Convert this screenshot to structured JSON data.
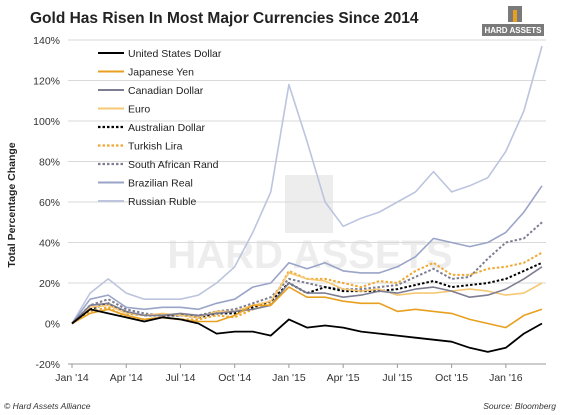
{
  "brand": {
    "logo_text": "HARD ASSETS",
    "watermark_text": "HARD ASSETS"
  },
  "colors": {
    "United States Dollar": "#000000",
    "Japanese Yen": "#e8a020",
    "Canadian Dollar": "#7d7d92",
    "Euro": "#f6c873",
    "Australian Dollar": "#000000",
    "Turkish Lira": "#f0a830",
    "South African Rand": "#7d7d92",
    "Brazilian Real": "#9aa4c8",
    "Russian Ruble": "#bcc4de",
    "logo_bg": "#7a7a7a",
    "logo_accent": "#e8a020"
  },
  "footer": {
    "left": "© Hard Assets Alliance",
    "right": "Source: Bloomberg"
  },
  "chart_data": {
    "type": "line",
    "title": "Gold Has Risen In Most Major Currencies Since 2014",
    "ylabel": "Total Percentage Change",
    "xlabel": "",
    "ylim": [
      -20,
      140
    ],
    "y_ticks": [
      "-20%",
      "0%",
      "20%",
      "40%",
      "60%",
      "80%",
      "100%",
      "120%",
      "140%"
    ],
    "x_ticks": [
      "Jan '14",
      "Apr '14",
      "Jul '14",
      "Oct '14",
      "Jan '15",
      "Apr '15",
      "Jul '15",
      "Oct '15",
      "Jan '16"
    ],
    "grid": "horizontal",
    "legend_position": "top-left",
    "x": [
      "2014-01",
      "2014-02",
      "2014-03",
      "2014-04",
      "2014-05",
      "2014-06",
      "2014-07",
      "2014-08",
      "2014-09",
      "2014-10",
      "2014-11",
      "2014-12",
      "2015-01",
      "2015-02",
      "2015-03",
      "2015-04",
      "2015-05",
      "2015-06",
      "2015-07",
      "2015-08",
      "2015-09",
      "2015-10",
      "2015-11",
      "2015-12",
      "2016-01",
      "2016-02",
      "2016-03"
    ],
    "series": [
      {
        "name": "United States Dollar",
        "dash": "solid",
        "values": [
          0,
          7,
          5,
          3,
          1,
          3,
          2,
          0,
          -5,
          -4,
          -4,
          -6,
          2,
          -2,
          -1,
          -2,
          -4,
          -5,
          -6,
          -7,
          -8,
          -9,
          -12,
          -14,
          -12,
          -5,
          0
        ]
      },
      {
        "name": "Japanese Yen",
        "dash": "solid",
        "values": [
          0,
          5,
          7,
          4,
          2,
          3,
          2,
          1,
          1,
          4,
          9,
          9,
          18,
          13,
          13,
          11,
          10,
          10,
          6,
          7,
          6,
          5,
          2,
          0,
          -2,
          4,
          7
        ]
      },
      {
        "name": "Canadian Dollar",
        "dash": "solid",
        "values": [
          0,
          9,
          10,
          6,
          4,
          4,
          5,
          4,
          5,
          6,
          7,
          9,
          20,
          15,
          15,
          13,
          14,
          16,
          15,
          17,
          18,
          16,
          13,
          14,
          17,
          22,
          28
        ]
      },
      {
        "name": "Euro",
        "dash": "solid",
        "values": [
          0,
          8,
          9,
          5,
          4,
          5,
          4,
          3,
          6,
          6,
          9,
          11,
          25,
          22,
          21,
          17,
          16,
          17,
          14,
          15,
          15,
          16,
          17,
          16,
          14,
          15,
          20
        ]
      },
      {
        "name": "Australian Dollar",
        "dash": "dotted",
        "values": [
          0,
          7,
          10,
          5,
          4,
          4,
          4,
          3,
          5,
          5,
          8,
          11,
          20,
          15,
          18,
          16,
          16,
          16,
          17,
          19,
          21,
          18,
          19,
          20,
          22,
          26,
          30
        ]
      },
      {
        "name": "Turkish Lira",
        "dash": "dotted",
        "values": [
          0,
          6,
          8,
          3,
          2,
          3,
          2,
          2,
          4,
          3,
          7,
          10,
          26,
          22,
          22,
          20,
          18,
          21,
          20,
          26,
          30,
          24,
          24,
          27,
          28,
          30,
          35
        ]
      },
      {
        "name": "South African Rand",
        "dash": "dotted",
        "values": [
          0,
          9,
          12,
          7,
          5,
          4,
          4,
          4,
          6,
          7,
          10,
          13,
          22,
          20,
          18,
          17,
          17,
          18,
          19,
          23,
          27,
          22,
          23,
          32,
          40,
          42,
          50
        ]
      },
      {
        "name": "Brazilian Real",
        "dash": "solid",
        "values": [
          0,
          12,
          14,
          8,
          7,
          8,
          8,
          7,
          10,
          12,
          18,
          20,
          30,
          27,
          30,
          26,
          25,
          25,
          28,
          33,
          42,
          40,
          38,
          40,
          45,
          55,
          68
        ]
      },
      {
        "name": "Russian Ruble",
        "dash": "solid",
        "values": [
          0,
          15,
          22,
          15,
          12,
          12,
          12,
          14,
          20,
          28,
          45,
          65,
          118,
          90,
          60,
          48,
          52,
          55,
          60,
          65,
          75,
          65,
          68,
          72,
          85,
          105,
          137
        ]
      }
    ]
  }
}
